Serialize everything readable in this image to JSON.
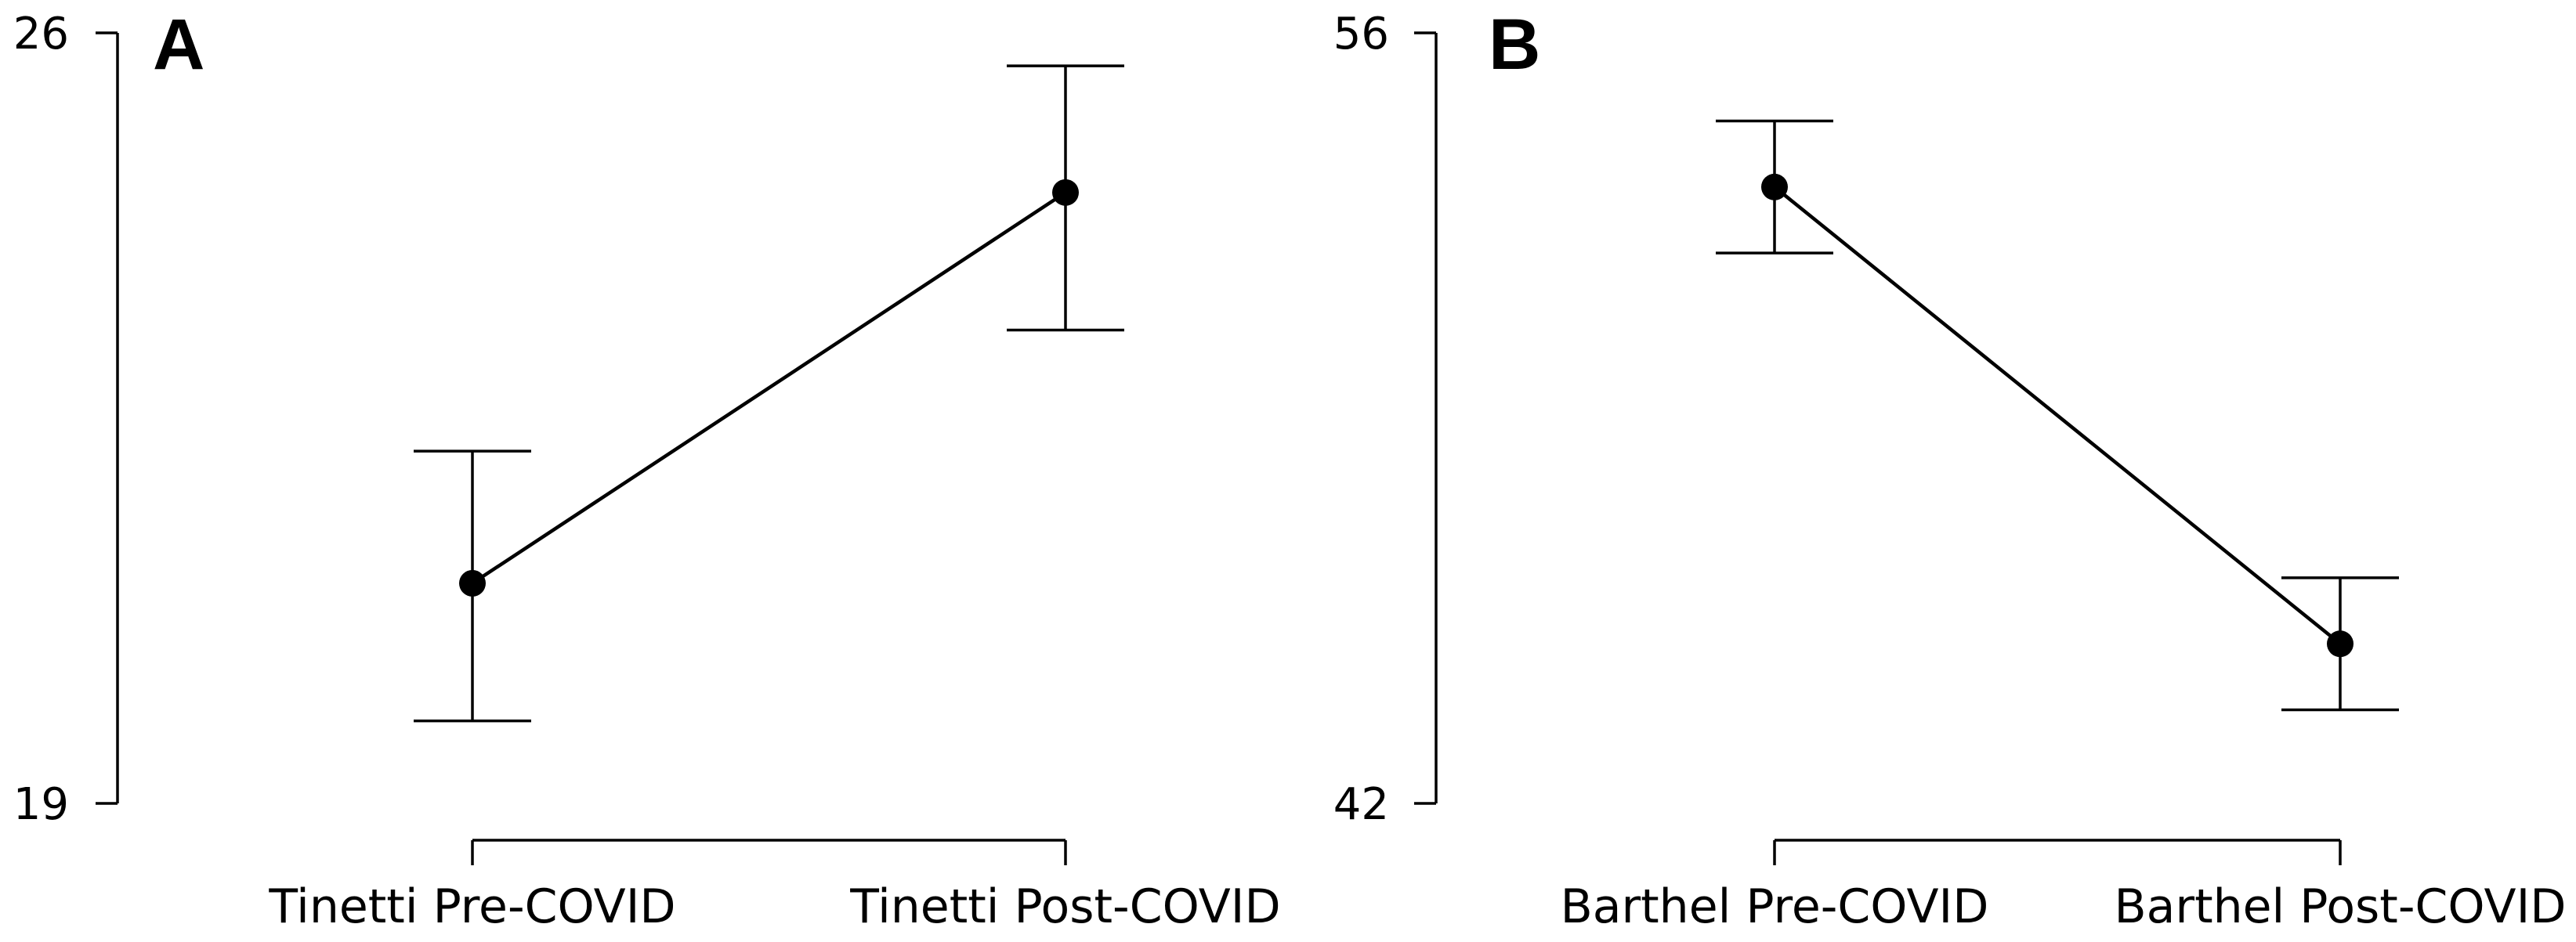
{
  "chart_data": [
    {
      "type": "line",
      "panel_label": "A",
      "categories": [
        "Tinetti Pre-COVID",
        "Tinetti Post-COVID"
      ],
      "values": [
        21.0,
        24.55
      ],
      "error_low": [
        19.75,
        23.3
      ],
      "error_high": [
        22.2,
        25.7
      ],
      "ylim": [
        19,
        26
      ],
      "yticks": [
        "19",
        "26"
      ],
      "grid": false,
      "legend": "none"
    },
    {
      "type": "line",
      "panel_label": "B",
      "categories": [
        "Barthel Pre-COVID",
        "Barthel Post-COVID"
      ],
      "values": [
        53.2,
        44.9
      ],
      "error_low": [
        52.0,
        43.7
      ],
      "error_high": [
        54.4,
        46.1
      ],
      "ylim": [
        42,
        56
      ],
      "yticks": [
        "42",
        "56"
      ],
      "grid": false,
      "legend": "none"
    }
  ]
}
